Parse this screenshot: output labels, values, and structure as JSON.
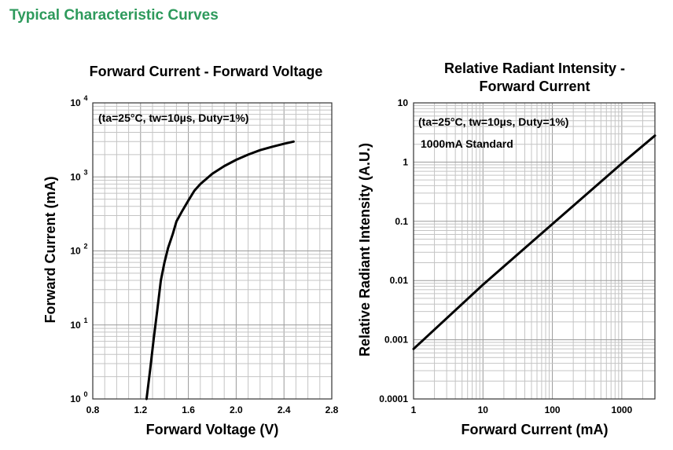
{
  "page": {
    "title": "Typical Characteristic Curves"
  },
  "chart_data": [
    {
      "type": "line",
      "title": "Forward Current - Forward Voltage",
      "annotation": "(ta=25°C, tw=10µs, Duty=1%)",
      "xlabel": "Forward Voltage (V)",
      "ylabel": "Forward Current (mA)",
      "xlim": [
        0.8,
        2.8
      ],
      "ylim": [
        1,
        10000
      ],
      "yscale": "log",
      "grid": true,
      "x_ticks": [
        "0.8",
        "1.2",
        "1.6",
        "2.0",
        "2.4",
        "2.8"
      ],
      "y_ticks": [
        {
          "base": "10",
          "exp": "0"
        },
        {
          "base": "10",
          "exp": "1"
        },
        {
          "base": "10",
          "exp": "2"
        },
        {
          "base": "10",
          "exp": "3"
        },
        {
          "base": "10",
          "exp": "4"
        }
      ],
      "series": [
        {
          "x": [
            1.25,
            1.28,
            1.31,
            1.34,
            1.37,
            1.4,
            1.43,
            1.47,
            1.5,
            1.55,
            1.6,
            1.65,
            1.7,
            1.8,
            1.9,
            2.0,
            2.1,
            2.2,
            2.3,
            2.4,
            2.48
          ],
          "y": [
            1,
            2.5,
            6.5,
            16,
            40,
            70,
            110,
            170,
            250,
            350,
            480,
            650,
            800,
            1100,
            1400,
            1700,
            2000,
            2300,
            2550,
            2800,
            3000
          ]
        }
      ]
    },
    {
      "type": "line",
      "title": "Relative Radiant Intensity - Forward Current",
      "annotation": "(ta=25°C, tw=10µs, Duty=1%)",
      "annotation2": "1000mA Standard",
      "xlabel": "Forward Current (mA)",
      "ylabel": "Relative Radiant Intensity (A.U.)",
      "xlim": [
        1,
        3000
      ],
      "ylim": [
        0.0001,
        10
      ],
      "xscale": "log",
      "yscale": "log",
      "grid": true,
      "x_ticks": [
        "1",
        "10",
        "100",
        "1000"
      ],
      "y_ticks": [
        "0.0001",
        "0.001",
        "0.01",
        "0.1",
        "1",
        "10"
      ],
      "series": [
        {
          "x": [
            1,
            10,
            100,
            1000,
            3000
          ],
          "y": [
            0.0007,
            0.0085,
            0.09,
            0.95,
            2.8
          ]
        }
      ]
    }
  ]
}
